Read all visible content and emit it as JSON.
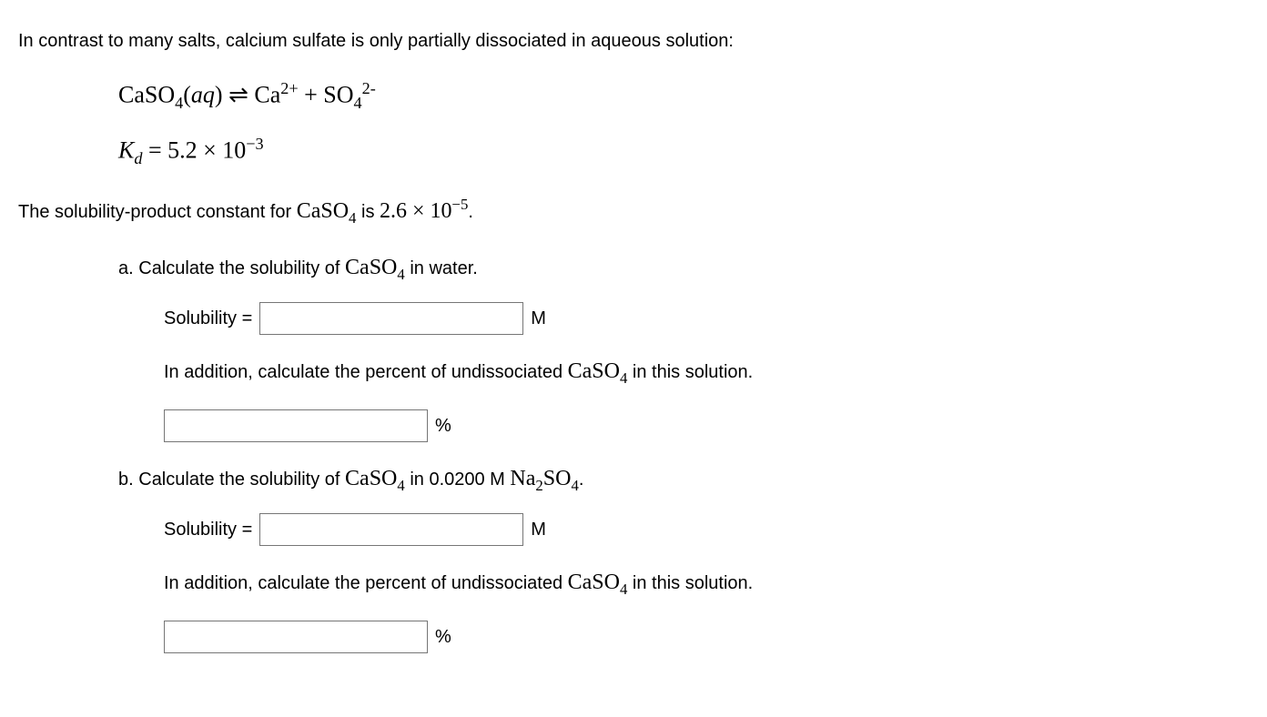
{
  "intro": "In contrast to many salts, calcium sulfate is only partially dissociated in aqueous solution:",
  "equation": {
    "lhs_species": "CaSO",
    "lhs_sub": "4",
    "lhs_state": "aq",
    "arrow": "⇌",
    "rhs1_species": "Ca",
    "rhs1_sup": "2+",
    "plus": "+",
    "rhs2_species": "SO",
    "rhs2_sub": "4",
    "rhs2_sup": "2-"
  },
  "kd": {
    "symbol": "K",
    "sub": "d",
    "eq": "=",
    "value": "5.2 × 10",
    "exp": "−3"
  },
  "statement_pre": "The solubility-product constant for ",
  "statement_species": "CaSO",
  "statement_sub": "4",
  "statement_mid": " is ",
  "statement_val": "2.6 × 10",
  "statement_exp": "−5",
  "statement_end": ".",
  "partA": {
    "label": "a.",
    "prompt_pre": " Calculate the solubility of ",
    "prompt_species": "CaSO",
    "prompt_sub": "4",
    "prompt_post": " in water.",
    "solubility_label": "Solubility =",
    "unit_M": "M",
    "followup_pre": "In addition, calculate the percent of undissociated ",
    "followup_species": "CaSO",
    "followup_sub": "4",
    "followup_post": " in this solution.",
    "unit_pct": "%"
  },
  "partB": {
    "label": "b.",
    "prompt_pre": " Calculate the solubility of ",
    "prompt_species": "CaSO",
    "prompt_sub": "4",
    "prompt_mid": " in 0.0200 M ",
    "other_species": "Na",
    "other_sub1": "2",
    "other_species2": "SO",
    "other_sub2": "4",
    "prompt_end": ".",
    "solubility_label": "Solubility =",
    "unit_M": "M",
    "followup_pre": "In addition, calculate the percent of undissociated ",
    "followup_species": "CaSO",
    "followup_sub": "4",
    "followup_post": " in this solution.",
    "unit_pct": "%"
  }
}
